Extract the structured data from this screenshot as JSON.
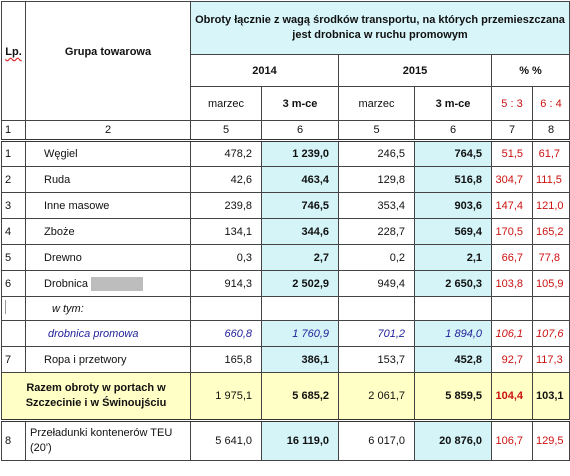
{
  "header": {
    "lp": "Lp.",
    "group": "Grupa towarowa",
    "title": "Obroty łącznie z wagą środków transportu, na których przemieszczana jest drobnica w ruchu promowym",
    "year1": "2014",
    "year2": "2015",
    "pct": "% %",
    "sub": [
      "marzec",
      "3 m-ce",
      "marzec",
      "3 m-ce",
      "5 : 3",
      "6 : 4"
    ],
    "nums": [
      "1",
      "2",
      "5",
      "6",
      "5",
      "6",
      "7",
      "8"
    ]
  },
  "rows": [
    {
      "lp": "1",
      "name": "Węgiel",
      "v": [
        "478,2",
        "1 239,0",
        "246,5",
        "764,5",
        "51,5",
        "61,7"
      ]
    },
    {
      "lp": "2",
      "name": "Ruda",
      "v": [
        "42,6",
        "463,4",
        "129,8",
        "516,8",
        "304,7",
        "111,5"
      ]
    },
    {
      "lp": "3",
      "name": "Inne masowe",
      "v": [
        "239,8",
        "746,5",
        "353,4",
        "903,6",
        "147,4",
        "121,0"
      ]
    },
    {
      "lp": "4",
      "name": "Zboże",
      "v": [
        "134,1",
        "344,6",
        "228,7",
        "569,4",
        "170,5",
        "165,2"
      ]
    },
    {
      "lp": "5",
      "name": "Drewno",
      "v": [
        "0,3",
        "2,7",
        "0,2",
        "2,1",
        "66,7",
        "77,8"
      ]
    },
    {
      "lp": "6",
      "name": "Drobnica",
      "v": [
        "914,3",
        "2 502,9",
        "949,4",
        "2 650,3",
        "103,8",
        "105,9"
      ]
    }
  ],
  "wtym": "w tym:",
  "promo": {
    "name": "drobnica promowa",
    "v": [
      "660,8",
      "1 760,9",
      "701,2",
      "1 894,0",
      "106,1",
      "107,6"
    ]
  },
  "row7": {
    "lp": "7",
    "name": "Ropa i przetwory",
    "v": [
      "165,8",
      "386,1",
      "153,7",
      "452,8",
      "92,7",
      "117,3"
    ]
  },
  "total": {
    "name": "Razem obroty w portach w Szczecinie i w Świnoujściu",
    "v": [
      "1 975,1",
      "5 685,2",
      "2 061,7",
      "5 859,5",
      "104,4",
      "103,1"
    ]
  },
  "row8": {
    "lp": "8",
    "name": "Przeładunki kontenerów TEU (20')",
    "v": [
      "5 641,0",
      "16 119,0",
      "6 017,0",
      "20 876,0",
      "106,7",
      "129,5"
    ]
  },
  "colors": {
    "cyan": "#d4f4f8",
    "yellow": "#ffffc6",
    "red": "#cc1111",
    "blue": "#22229a"
  }
}
